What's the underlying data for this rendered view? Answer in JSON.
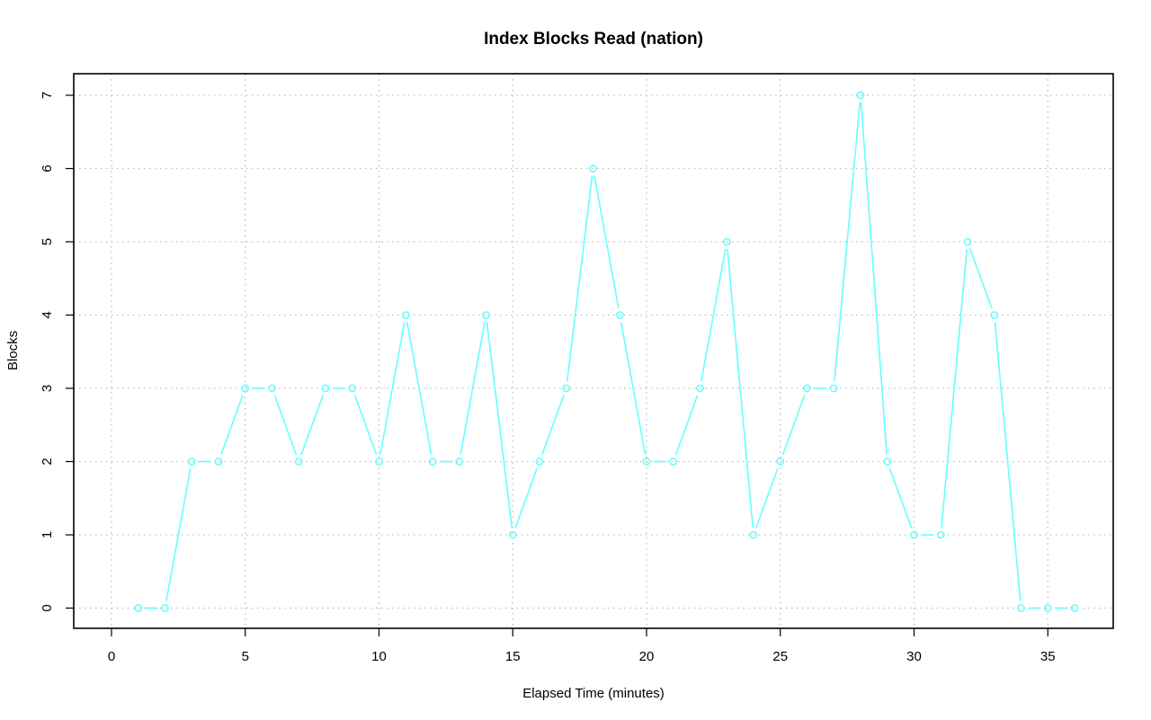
{
  "chart_data": {
    "type": "line",
    "title": "Index Blocks Read (nation)",
    "xlabel": "Elapsed Time (minutes)",
    "ylabel": "Blocks",
    "xlim": [
      0,
      37.5
    ],
    "ylim": [
      0,
      7
    ],
    "x_ticks": [
      0,
      5,
      10,
      15,
      20,
      25,
      30,
      35
    ],
    "y_ticks": [
      0,
      1,
      2,
      3,
      4,
      5,
      6,
      7
    ],
    "grid": true,
    "series": [
      {
        "color": "#66ffff",
        "marker": "circle",
        "x": [
          1,
          2,
          3,
          4,
          5,
          6,
          7,
          8,
          9,
          10,
          11,
          12,
          13,
          14,
          15,
          16,
          17,
          18,
          19,
          20,
          21,
          22,
          23,
          24,
          25,
          26,
          27,
          28,
          29,
          30,
          31,
          32,
          33,
          34,
          35,
          36
        ],
        "y": [
          0,
          0,
          2,
          2,
          3,
          3,
          2,
          3,
          3,
          2,
          4,
          2,
          2,
          4,
          1,
          2,
          3,
          6,
          4,
          2,
          2,
          3,
          5,
          1,
          2,
          3,
          3,
          7,
          2,
          1,
          1,
          5,
          4,
          0,
          0,
          0
        ]
      }
    ]
  }
}
